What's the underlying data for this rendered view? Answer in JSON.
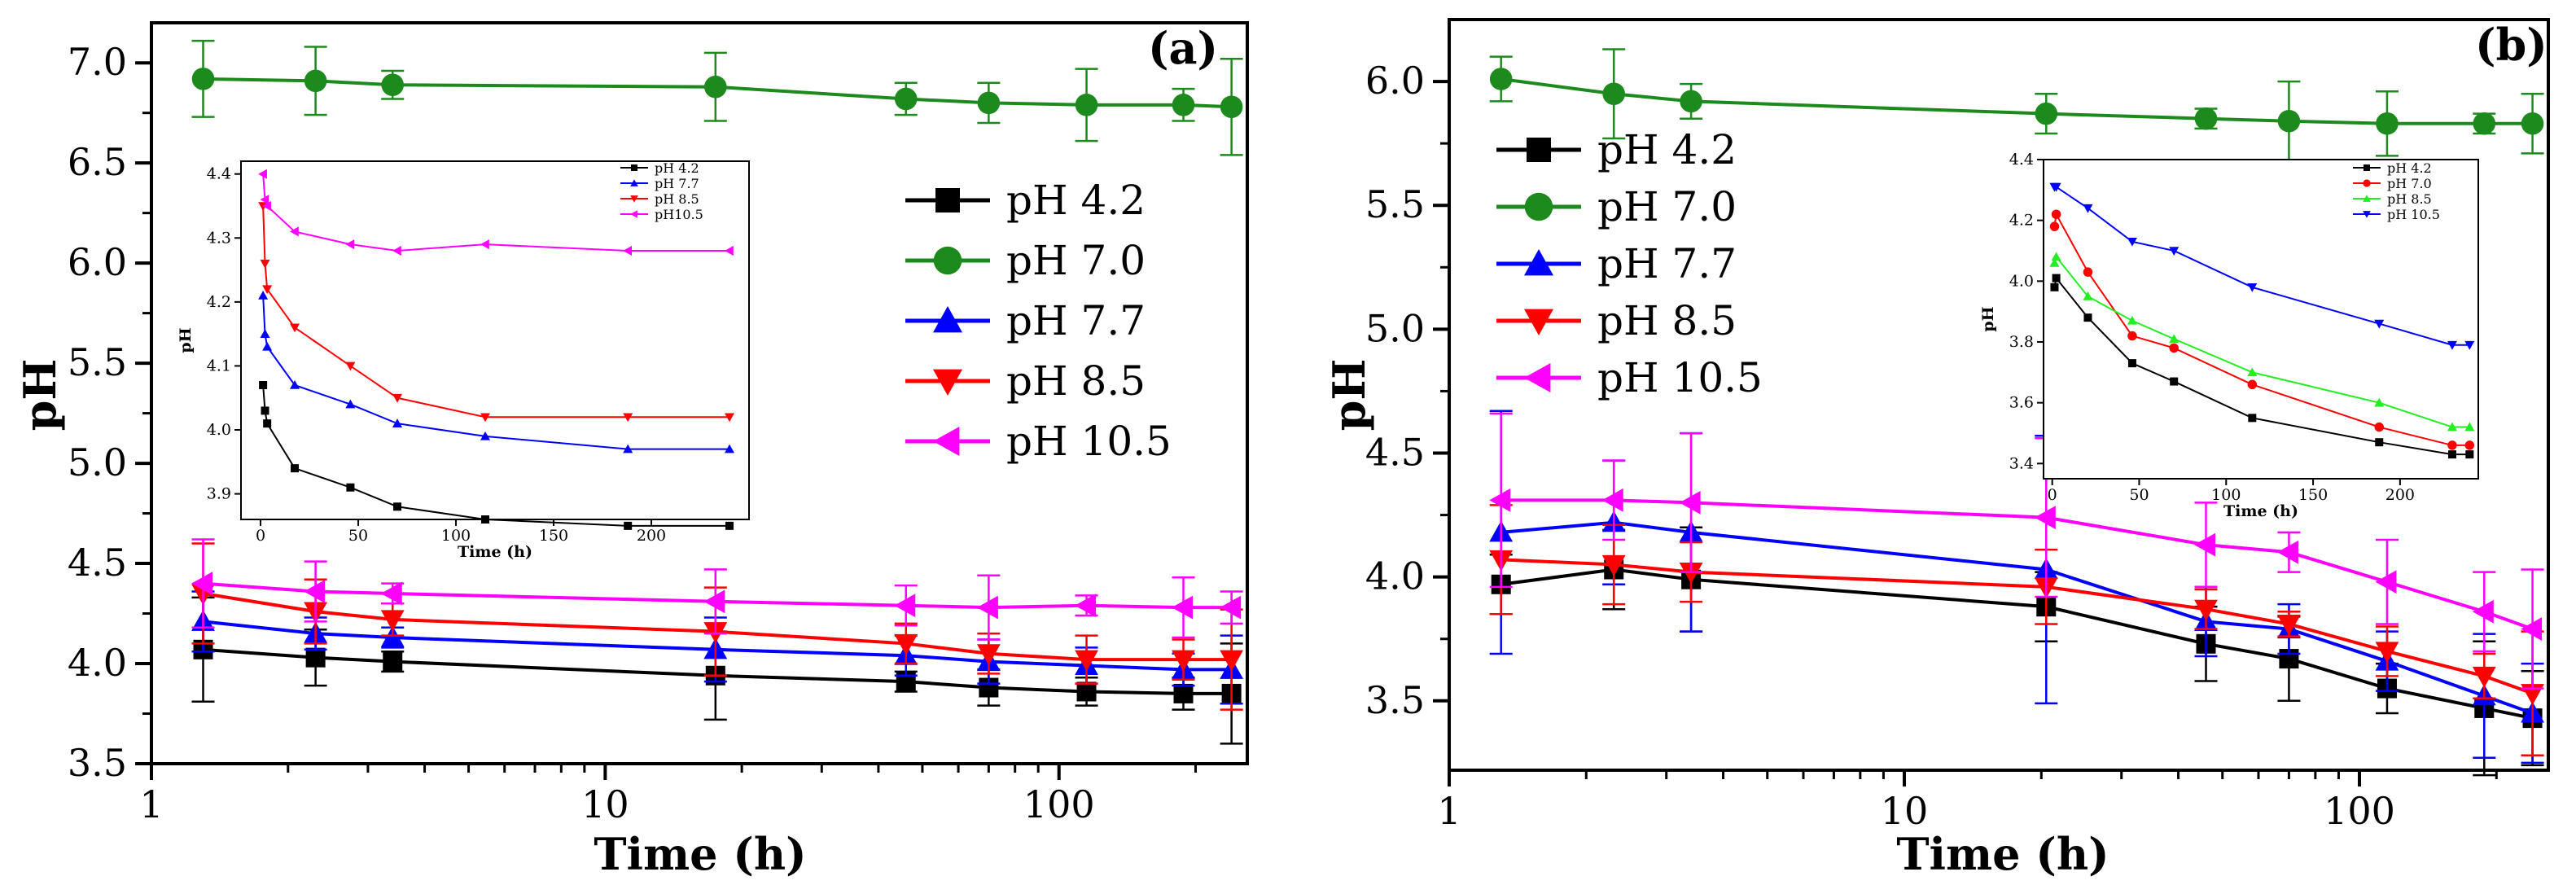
{
  "chart_data": [
    {
      "type": "line",
      "panel_label": "(a)",
      "xlabel": "Time (h)",
      "ylabel": "pH",
      "xscale": "log",
      "xlim": [
        1,
        260
      ],
      "ylim": [
        3.5,
        7.2
      ],
      "xticks": [
        1,
        10,
        100
      ],
      "xtick_labels": [
        "1",
        "10",
        "100"
      ],
      "yticks": [
        3.5,
        4.0,
        4.5,
        5.0,
        5.5,
        6.0,
        6.5,
        7.0
      ],
      "ytick_labels": [
        "3.5",
        "4.0",
        "4.5",
        "5.0",
        "5.5",
        "6.0",
        "6.5",
        "7.0"
      ],
      "x": [
        1.3,
        2.3,
        3.4,
        17.5,
        46,
        70,
        115,
        188,
        240
      ],
      "legend": "right",
      "series": [
        {
          "name": "pH 4.2",
          "color": "#000000",
          "marker": "square",
          "values": [
            4.07,
            4.03,
            4.01,
            3.94,
            3.91,
            3.88,
            3.86,
            3.85,
            3.85
          ],
          "err": [
            0.26,
            0.14,
            0.05,
            0.22,
            0.05,
            0.09,
            0.07,
            0.08,
            0.25
          ]
        },
        {
          "name": "pH 7.0",
          "color": "#1d8a1d",
          "marker": "circle",
          "values": [
            6.92,
            6.91,
            6.89,
            6.88,
            6.82,
            6.8,
            6.79,
            6.79,
            6.78
          ],
          "err": [
            0.19,
            0.17,
            0.07,
            0.17,
            0.08,
            0.1,
            0.18,
            0.08,
            0.24
          ]
        },
        {
          "name": "pH 7.7",
          "color": "#0000ff",
          "marker": "triangle-up",
          "values": [
            4.21,
            4.15,
            4.13,
            4.07,
            4.04,
            4.01,
            3.99,
            3.97,
            3.97
          ],
          "err": [
            0.15,
            0.08,
            0.05,
            0.16,
            0.1,
            0.11,
            0.09,
            0.08,
            0.17
          ]
        },
        {
          "name": "pH 8.5",
          "color": "#ff0000",
          "marker": "triangle-down",
          "values": [
            4.35,
            4.26,
            4.22,
            4.16,
            4.1,
            4.05,
            4.02,
            4.02,
            4.02
          ],
          "err": [
            0.25,
            0.16,
            0.08,
            0.22,
            0.1,
            0.1,
            0.12,
            0.1,
            0.25
          ]
        },
        {
          "name": "pH 10.5",
          "color": "#ff00ff",
          "marker": "triangle-left",
          "values": [
            4.4,
            4.36,
            4.35,
            4.31,
            4.29,
            4.28,
            4.29,
            4.28,
            4.28
          ],
          "err": [
            0.22,
            0.15,
            0.05,
            0.16,
            0.1,
            0.16,
            0.05,
            0.15,
            0.08
          ]
        }
      ],
      "inset": {
        "xlabel": "Time (h)",
        "ylabel": "pH",
        "xlim": [
          -10,
          250
        ],
        "ylim": [
          3.86,
          4.42
        ],
        "xticks": [
          0,
          50,
          100,
          150,
          200
        ],
        "xtick_labels": [
          "0",
          "50",
          "100",
          "150",
          "200"
        ],
        "yticks": [
          3.9,
          4.0,
          4.1,
          4.2,
          4.3,
          4.4
        ],
        "ytick_labels": [
          "3.9",
          "4.0",
          "4.1",
          "4.2",
          "4.3",
          "4.4"
        ],
        "x": [
          1.3,
          2.3,
          3.4,
          17.5,
          46,
          70,
          115,
          188,
          240
        ],
        "series": [
          {
            "name": "pH 4.2",
            "color": "#000000",
            "marker": "square",
            "values": [
              4.07,
              4.03,
              4.01,
              3.94,
              3.91,
              3.88,
              3.86,
              3.85,
              3.85
            ]
          },
          {
            "name": "pH 7.7",
            "color": "#0000ff",
            "marker": "triangle-up",
            "values": [
              4.21,
              4.15,
              4.13,
              4.07,
              4.04,
              4.01,
              3.99,
              3.97,
              3.97
            ]
          },
          {
            "name": "pH 8.5",
            "color": "#ff0000",
            "marker": "triangle-down",
            "values": [
              4.35,
              4.26,
              4.22,
              4.16,
              4.1,
              4.05,
              4.02,
              4.02,
              4.02
            ]
          },
          {
            "name": "pH10.5",
            "color": "#ff00ff",
            "marker": "triangle-left",
            "values": [
              4.4,
              4.36,
              4.35,
              4.31,
              4.29,
              4.28,
              4.29,
              4.28,
              4.28
            ]
          }
        ]
      }
    },
    {
      "type": "line",
      "panel_label": "(b)",
      "xlabel": "Time (h)",
      "ylabel": "pH",
      "xscale": "log",
      "xlim": [
        1,
        260
      ],
      "ylim": [
        3.22,
        6.25
      ],
      "xticks": [
        1,
        10,
        100
      ],
      "xtick_labels": [
        "1",
        "10",
        "100"
      ],
      "yticks": [
        3.5,
        4.0,
        4.5,
        5.0,
        5.5,
        6.0
      ],
      "ytick_labels": [
        "3.5",
        "4.0",
        "4.5",
        "5.0",
        "5.5",
        "6.0"
      ],
      "x": [
        1.3,
        2.3,
        3.4,
        20.5,
        46,
        70,
        115,
        188,
        240
      ],
      "legend": "upper-left",
      "series": [
        {
          "name": "pH 4.2",
          "color": "#000000",
          "marker": "square",
          "values": [
            3.97,
            4.03,
            3.99,
            3.88,
            3.73,
            3.67,
            3.55,
            3.47,
            3.43
          ],
          "err": [
            0.12,
            0.16,
            0.21,
            0.14,
            0.15,
            0.17,
            0.1,
            0.27,
            0.19
          ]
        },
        {
          "name": "pH 7.0",
          "color": "#1d8a1d",
          "marker": "circle",
          "values": [
            6.01,
            5.95,
            5.92,
            5.87,
            5.85,
            5.84,
            5.83,
            5.83,
            5.83
          ],
          "err": [
            0.09,
            0.18,
            0.07,
            0.08,
            0.04,
            0.16,
            0.13,
            0.04,
            0.12
          ]
        },
        {
          "name": "pH 7.7",
          "color": "#0000ff",
          "marker": "triangle-up",
          "values": [
            4.18,
            4.22,
            4.18,
            4.03,
            3.82,
            3.79,
            3.66,
            3.52,
            3.45
          ],
          "err": [
            0.49,
            0.25,
            0.4,
            0.54,
            0.14,
            0.1,
            0.12,
            0.25,
            0.2
          ]
        },
        {
          "name": "pH 8.5",
          "color": "#ff0000",
          "marker": "triangle-down",
          "values": [
            4.07,
            4.05,
            4.02,
            3.96,
            3.87,
            3.81,
            3.7,
            3.6,
            3.53
          ],
          "err": [
            0.22,
            0.16,
            0.12,
            0.15,
            0.08,
            0.05,
            0.1,
            0.09,
            0.25
          ]
        },
        {
          "name": "pH 10.5",
          "color": "#ff00ff",
          "marker": "triangle-left",
          "values": [
            4.31,
            4.31,
            4.3,
            4.24,
            4.13,
            4.1,
            3.98,
            3.86,
            3.79
          ],
          "err": [
            0.35,
            0.16,
            0.28,
            0.32,
            0.17,
            0.08,
            0.17,
            0.16,
            0.24
          ]
        }
      ],
      "inset": {
        "xlabel": "Time (h)",
        "ylabel": "pH",
        "xlim": [
          -5,
          245
        ],
        "ylim": [
          3.35,
          4.4
        ],
        "xticks": [
          0,
          50,
          100,
          150,
          200
        ],
        "xtick_labels": [
          "0",
          "50",
          "100",
          "150",
          "200"
        ],
        "yticks": [
          3.4,
          3.6,
          3.8,
          4.0,
          4.2,
          4.4
        ],
        "ytick_labels": [
          "3.4",
          "3.6",
          "3.8",
          "4.0",
          "4.2",
          "4.4"
        ],
        "x": [
          1.3,
          2.3,
          20.5,
          46,
          70,
          115,
          188,
          230,
          240
        ],
        "series": [
          {
            "name": "pH 4.2",
            "color": "#000000",
            "marker": "square",
            "values": [
              3.98,
              4.01,
              3.88,
              3.73,
              3.67,
              3.55,
              3.47,
              3.43,
              3.43
            ]
          },
          {
            "name": "pH 7.0",
            "color": "#ff0000",
            "marker": "circle",
            "values": [
              4.18,
              4.22,
              4.03,
              3.82,
              3.78,
              3.66,
              3.52,
              3.46,
              3.46
            ]
          },
          {
            "name": "pH 8.5",
            "color": "#22ee22",
            "marker": "triangle-up",
            "values": [
              4.06,
              4.08,
              3.95,
              3.87,
              3.81,
              3.7,
              3.6,
              3.52,
              3.52
            ]
          },
          {
            "name": "pH 10.5",
            "color": "#0000ff",
            "marker": "triangle-down",
            "values": [
              4.31,
              4.31,
              4.24,
              4.13,
              4.1,
              3.98,
              3.86,
              3.79,
              3.79
            ]
          }
        ]
      }
    }
  ]
}
